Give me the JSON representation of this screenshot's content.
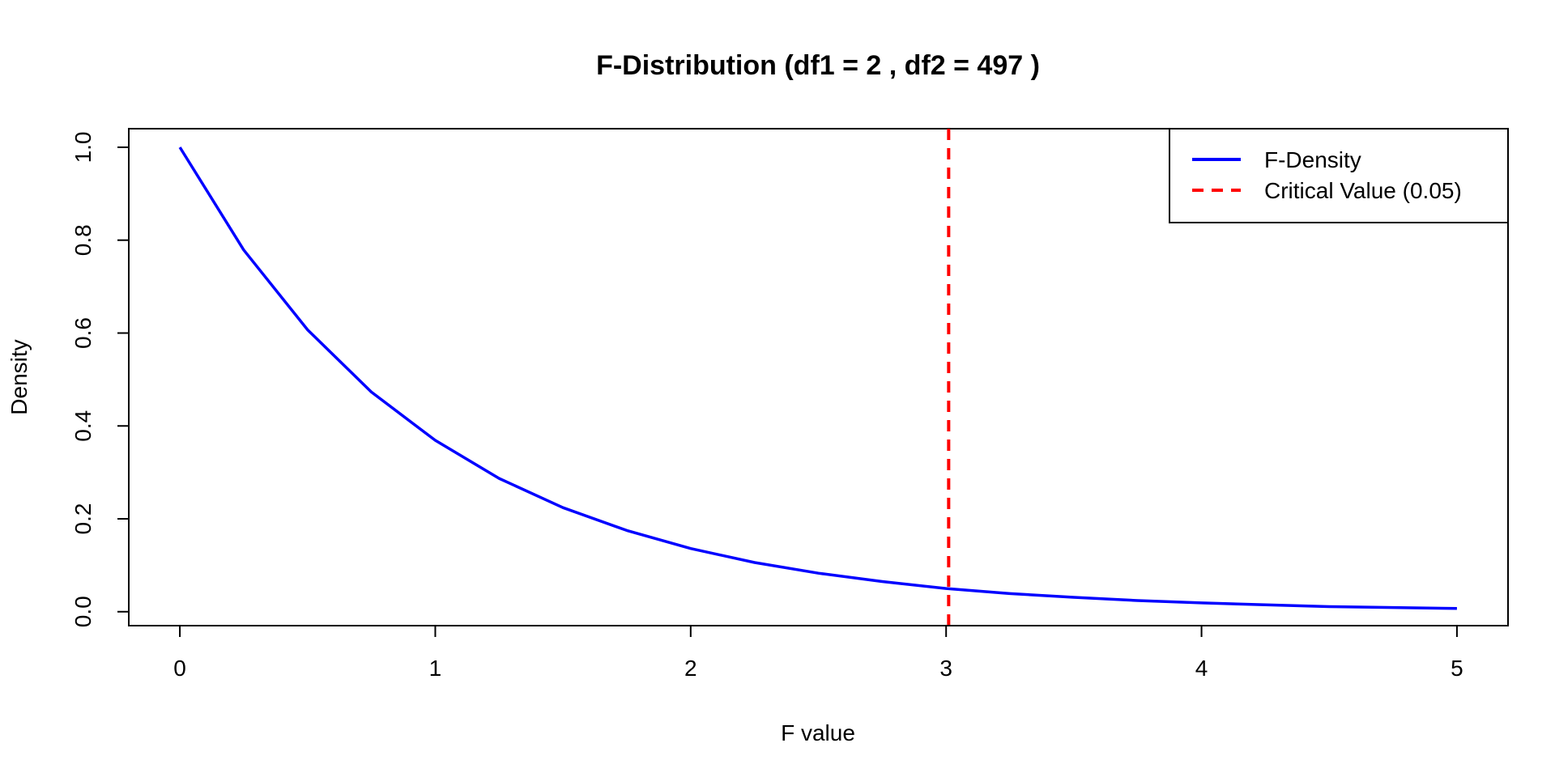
{
  "chart_data": {
    "type": "line",
    "title": "F-Distribution (df1 = 2 , df2 = 497 )",
    "xlabel": "F value",
    "ylabel": "Density",
    "xlim": [
      -0.2,
      5.2
    ],
    "ylim": [
      -0.03,
      1.04
    ],
    "x_ticks": [
      0,
      1,
      2,
      3,
      4,
      5
    ],
    "x_tick_labels": [
      "0",
      "1",
      "2",
      "3",
      "4",
      "5"
    ],
    "y_ticks": [
      0.0,
      0.2,
      0.4,
      0.6,
      0.8,
      1.0
    ],
    "y_tick_labels": [
      "0.0",
      "0.2",
      "0.4",
      "0.6",
      "0.8",
      "1.0"
    ],
    "grid": false,
    "legend_position": "top-right",
    "series": [
      {
        "name": "F-Density",
        "color": "#0000ff",
        "line_style": "solid",
        "x": [
          0,
          0.25,
          0.5,
          0.75,
          1,
          1.25,
          1.5,
          1.75,
          2,
          2.25,
          2.5,
          2.75,
          3,
          3.25,
          3.5,
          3.75,
          4,
          4.25,
          4.5,
          4.75,
          5
        ],
        "y": [
          1.0,
          0.779,
          0.607,
          0.473,
          0.369,
          0.287,
          0.224,
          0.175,
          0.136,
          0.106,
          0.083,
          0.065,
          0.05,
          0.039,
          0.031,
          0.024,
          0.019,
          0.015,
          0.011,
          0.009,
          0.007
        ]
      }
    ],
    "vlines": [
      {
        "name": "Critical Value (0.05)",
        "x": 3.01,
        "color": "#ff0000",
        "line_style": "dashed"
      }
    ]
  }
}
